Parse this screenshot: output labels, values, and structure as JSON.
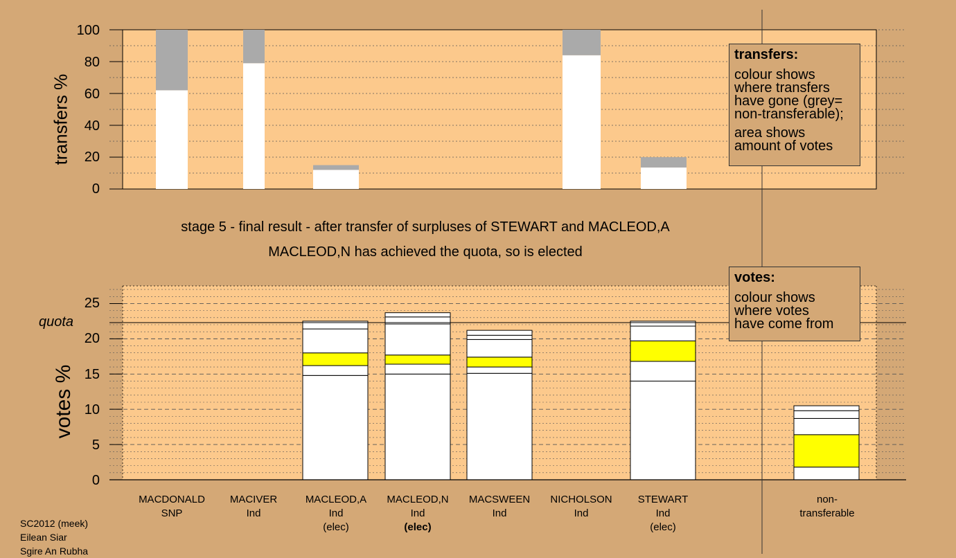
{
  "chart_data": [
    {
      "type": "bar",
      "stacked": true,
      "ylabel": "transfers %",
      "ylim": [
        0,
        100
      ],
      "yticks": [
        0,
        20,
        40,
        60,
        80,
        100
      ],
      "legend": {
        "title": "transfers:",
        "lines": [
          "colour shows",
          "where transfers",
          "have gone (grey=",
          "non-transferable);",
          "area shows",
          "amount of votes"
        ]
      },
      "bars": [
        {
          "candidate": "MACDONALD",
          "transferred": 62,
          "nontransferable": 38
        },
        {
          "candidate": "MACIVER",
          "transferred": 79,
          "nontransferable": 21
        },
        {
          "candidate": "MACLEOD,A",
          "transferred": 12,
          "nontransferable": 3
        },
        {
          "candidate": "NICHOLSON",
          "transferred": 84,
          "nontransferable": 16
        },
        {
          "candidate": "STEWART",
          "transferred": 13.5,
          "nontransferable": 6.5
        }
      ]
    },
    {
      "type": "bar",
      "stacked": true,
      "ylabel": "votes %",
      "ylim": [
        0,
        27.5
      ],
      "yticks": [
        0,
        5,
        10,
        15,
        20,
        25
      ],
      "quota": 22.3,
      "quota_label": "quota",
      "legend": {
        "title": "votes:",
        "lines": [
          "colour shows",
          "where votes",
          "have come from"
        ]
      },
      "captions": [
        "stage 5 - final result - after transfer of surpluses of STEWART and MACLEOD,A",
        "MACLEOD,N has achieved the quota, so is elected"
      ],
      "candidates": [
        {
          "name": "MACDONALD",
          "party": "SNP",
          "status": "",
          "total": 0,
          "segments": []
        },
        {
          "name": "MACIVER",
          "party": "Ind",
          "status": "",
          "total": 0,
          "segments": []
        },
        {
          "name": "MACLEOD,A",
          "party": "Ind",
          "status": "(elec)",
          "total": 22.5,
          "segments": [
            {
              "v": 14.8,
              "c": "#ffffff"
            },
            {
              "v": 1.4,
              "c": "#ffffff"
            },
            {
              "v": 1.8,
              "c": "#ffff00"
            },
            {
              "v": 3.4,
              "c": "#ffffff"
            },
            {
              "v": 1.1,
              "c": "#ffffff"
            }
          ]
        },
        {
          "name": "MACLEOD,N",
          "party": "Ind",
          "status": "(elec)",
          "total": 23.7,
          "segments": [
            {
              "v": 15.0,
              "c": "#ffffff"
            },
            {
              "v": 1.4,
              "c": "#ffffff"
            },
            {
              "v": 1.3,
              "c": "#ffff00"
            },
            {
              "v": 4.4,
              "c": "#ffffff"
            },
            {
              "v": 1.0,
              "c": "#ffffff"
            },
            {
              "v": 0.6,
              "c": "#ffffff"
            }
          ]
        },
        {
          "name": "MACSWEEN",
          "party": "Ind",
          "status": "",
          "total": 21.2,
          "segments": [
            {
              "v": 15.1,
              "c": "#ffffff"
            },
            {
              "v": 0.9,
              "c": "#ffffff"
            },
            {
              "v": 1.4,
              "c": "#ffff00"
            },
            {
              "v": 2.5,
              "c": "#ffffff"
            },
            {
              "v": 0.6,
              "c": "#ffffff"
            },
            {
              "v": 0.7,
              "c": "#ffffff"
            }
          ]
        },
        {
          "name": "NICHOLSON",
          "party": "Ind",
          "status": "",
          "total": 0,
          "segments": []
        },
        {
          "name": "STEWART",
          "party": "Ind",
          "status": "(elec)",
          "total": 22.5,
          "segments": [
            {
              "v": 14.0,
              "c": "#ffffff"
            },
            {
              "v": 2.8,
              "c": "#ffffff"
            },
            {
              "v": 2.9,
              "c": "#ffff00"
            },
            {
              "v": 2.1,
              "c": "#ffffff"
            },
            {
              "v": 0.7,
              "c": "#ffffff"
            }
          ]
        },
        {
          "name": "non-",
          "party": "transferable",
          "status": "",
          "total": 10.5,
          "segments": [
            {
              "v": 1.8,
              "c": "#ffffff"
            },
            {
              "v": 4.6,
              "c": "#ffff00"
            },
            {
              "v": 2.3,
              "c": "#ffffff"
            },
            {
              "v": 1.1,
              "c": "#ffffff"
            },
            {
              "v": 0.7,
              "c": "#ffffff"
            }
          ]
        }
      ]
    }
  ],
  "footer": [
    "SC2012 (meek)",
    "Eilean Siar",
    "Sgire An Rubha"
  ],
  "colors": {
    "background": "#d4a876",
    "panel": "#fcc98c",
    "nontransferable": "#aaaaaa",
    "highlight": "#ffff00"
  }
}
